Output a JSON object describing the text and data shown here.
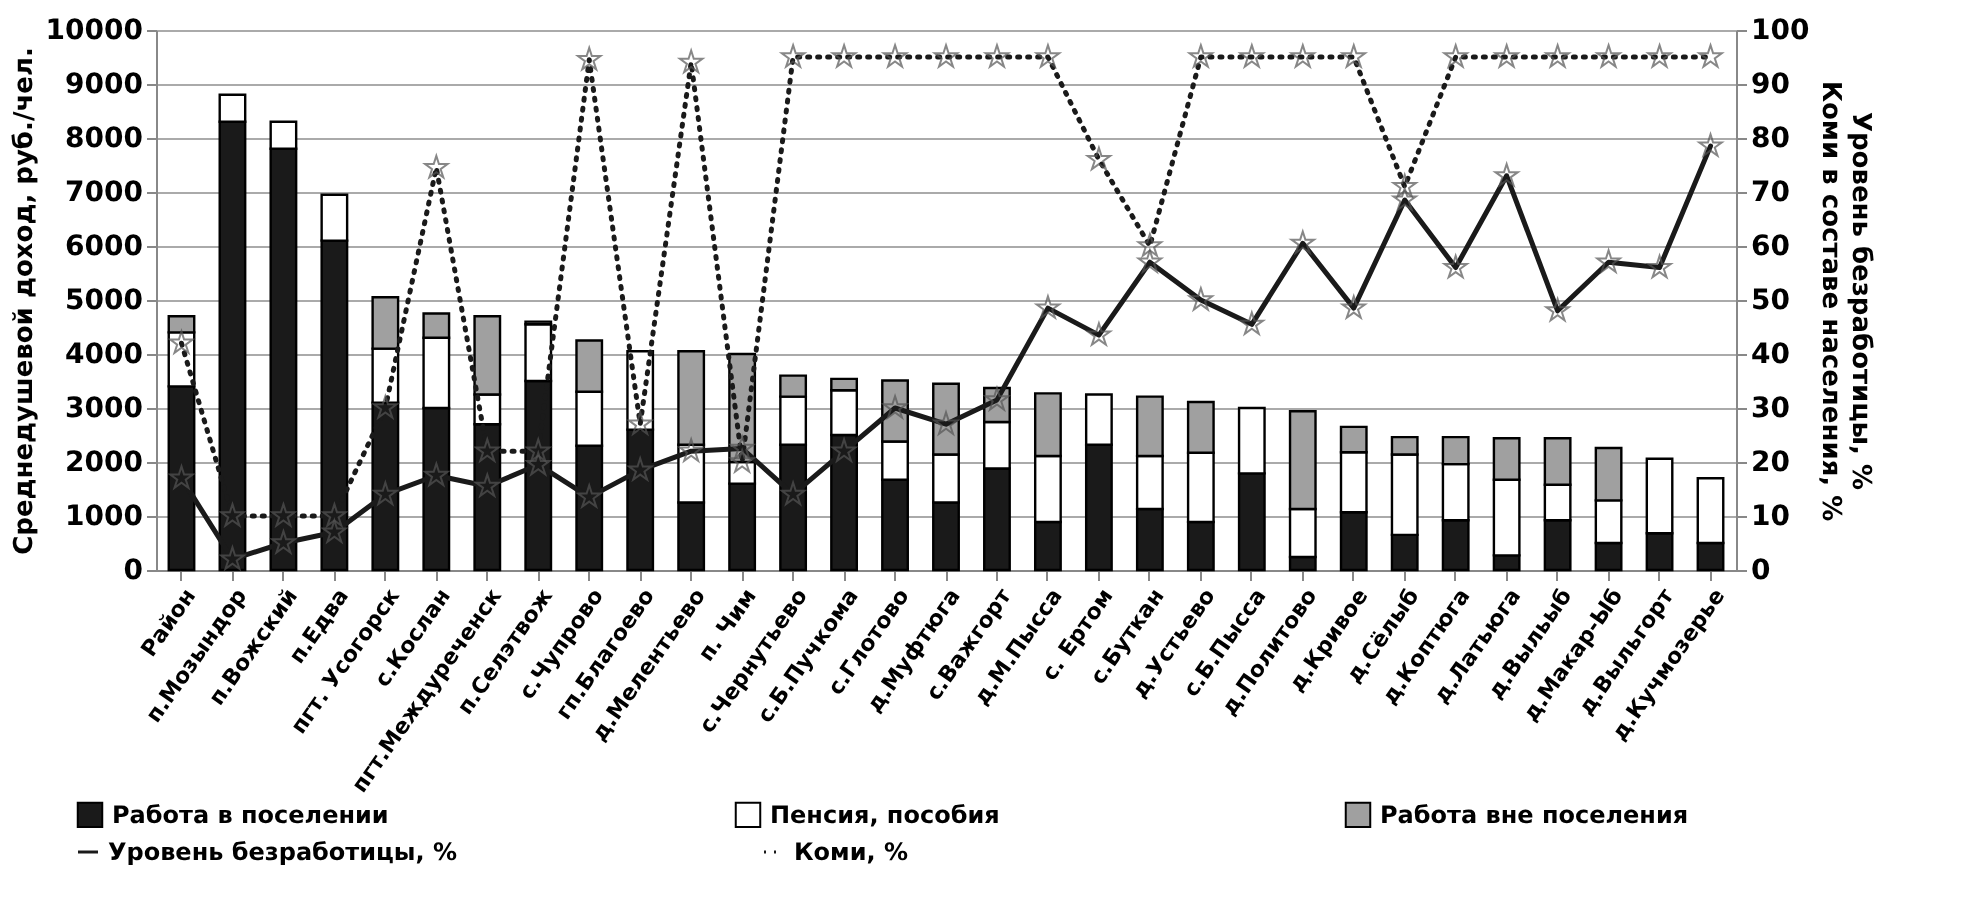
{
  "chart_data": {
    "type": "bar",
    "stacked": true,
    "categories": [
      "Район",
      "п.Мозындор",
      "п.Вожский",
      "п.Едва",
      "пгт. Усогорск",
      "с.Кослан",
      "пгт.Междуреченск",
      "п.Селэтвож",
      "с.Чупрово",
      "гп.Благоево",
      "д.Мелентьево",
      "п. Чим",
      "с.Чернутьево",
      "с.Б.Пучкома",
      "с.Глотово",
      "д.Муфтюга",
      "с.Важгорт",
      "д.М.Пысса",
      "с. Ертом",
      "с.Буткан",
      "д.Устьево",
      "с.Б.Пысса",
      "д.Политово",
      "д.Кривое",
      "д.Сёлыб",
      "д.Коптюга",
      "д.Латьюга",
      "д.Выльыб",
      "д.Макар-Ыб",
      "д.Выльгорт",
      "д.Кучмозерье"
    ],
    "ylabel": "Среднедушевой доход, руб./чел.",
    "y2label": "Уровень безработицы, %\nКоми в составе населения, %",
    "ylim": [
      0,
      10000
    ],
    "yticks": [
      0,
      1000,
      2000,
      3000,
      4000,
      5000,
      6000,
      7000,
      8000,
      9000,
      10000
    ],
    "y2lim": [
      0,
      100
    ],
    "y2ticks": [
      0,
      10,
      20,
      30,
      40,
      50,
      60,
      70,
      80,
      90,
      100
    ],
    "grid": "y",
    "legend": "bottom",
    "marker": "star",
    "series": [
      {
        "name": "Работа в поселении",
        "type": "bar",
        "color": "#1a1a1a",
        "values": [
          3400,
          8300,
          7800,
          6100,
          3100,
          3000,
          2700,
          3500,
          2300,
          2600,
          1250,
          1600,
          2320,
          2500,
          1670,
          1250,
          1880,
          890,
          2320,
          1130,
          890,
          1790,
          240,
          1070,
          650,
          920,
          270,
          920,
          500,
          680,
          500
        ]
      },
      {
        "name": "Пенсия, пособия",
        "type": "bar",
        "color": "#ffffff",
        "values": [
          1000,
          500,
          500,
          850,
          1000,
          1300,
          550,
          1050,
          1000,
          1450,
          1070,
          400,
          890,
          830,
          710,
          890,
          860,
          1220,
          930,
          980,
          1280,
          1210,
          890,
          1110,
          1490,
          1040,
          1400,
          660,
          790,
          1380,
          1200
        ]
      },
      {
        "name": "Работа вне поселения",
        "type": "bar",
        "color": "#a0a0a0",
        "values": [
          300,
          0,
          0,
          0,
          950,
          450,
          1450,
          50,
          950,
          0,
          1730,
          2000,
          390,
          210,
          1130,
          1310,
          630,
          1160,
          0,
          1100,
          940,
          0,
          1810,
          470,
          320,
          500,
          770,
          860,
          970,
          0,
          0
        ]
      },
      {
        "name": "Уровень безработицы, %",
        "type": "line",
        "axis": "y2",
        "line_style": "solid",
        "color": "#1a1a1a",
        "values": [
          17,
          2,
          5,
          7,
          14,
          17.5,
          15.5,
          19.5,
          13.5,
          18.5,
          22,
          22.5,
          14,
          22,
          30,
          27,
          31.5,
          48.5,
          43.5,
          57,
          50,
          45.5,
          60.5,
          48.5,
          68.5,
          56,
          73,
          48,
          57,
          56,
          78.5
        ]
      },
      {
        "name": "Коми, %",
        "type": "line",
        "axis": "y2",
        "line_style": "dotted",
        "color": "#1a1a1a",
        "values": [
          42,
          10,
          10,
          10,
          30,
          74.5,
          22,
          22,
          94.5,
          27,
          94,
          20,
          95,
          95,
          95,
          95,
          95,
          95,
          76,
          60,
          95,
          95,
          95,
          95,
          71,
          95,
          95,
          95,
          95,
          95,
          95
        ]
      }
    ]
  }
}
